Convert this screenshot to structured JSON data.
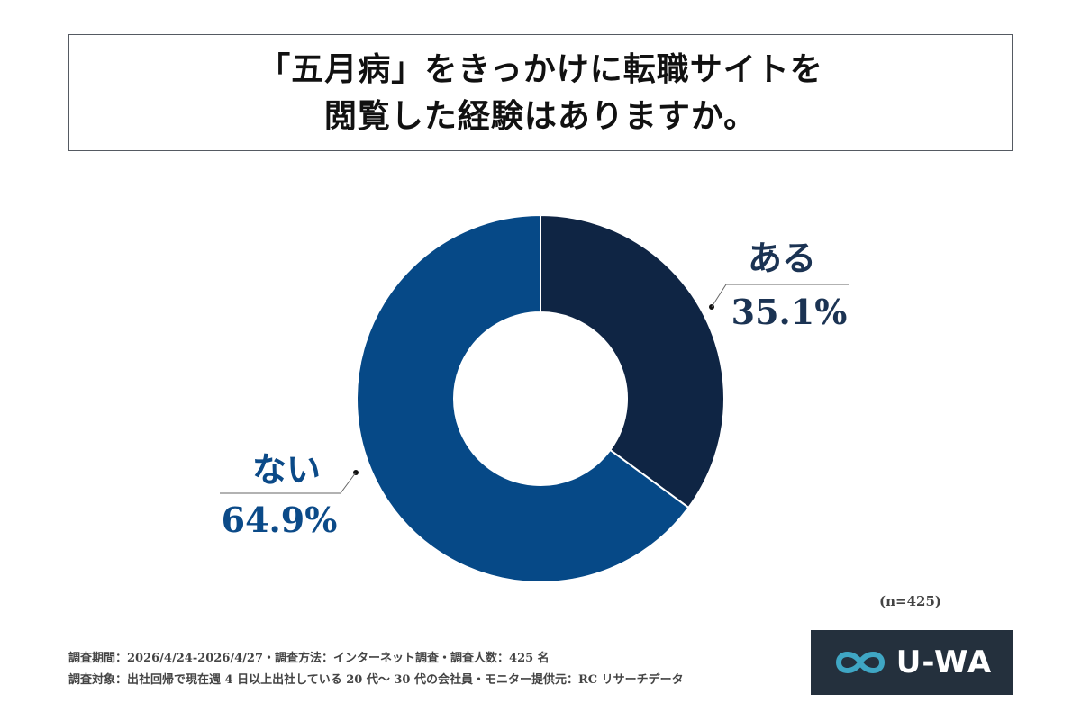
{
  "title": {
    "line1": "「五月病」をきっかけに転職サイトを",
    "line2": "閲覧した経験はありますか。"
  },
  "chart_data": {
    "type": "pie",
    "categories": [
      "ある",
      "ない"
    ],
    "values": [
      35.1,
      64.9
    ],
    "value_labels": [
      "35.1%",
      "64.9%"
    ],
    "colors": [
      "#0f2544",
      "#064987"
    ],
    "label_colors": [
      "#1b3353",
      "#0b4a88"
    ]
  },
  "sample_size": "(n=425)",
  "footnotes": {
    "line1": "調査期間：2026/4/24-2026/4/27・調査方法：インターネット調査・調査人数：425 名",
    "line2": "調査対象：出社回帰で現在週 4 日以上出社している 20 代〜 30 代の会社員・モニター提供元：RC リサーチデータ"
  },
  "logo": {
    "text": "U-WA",
    "icon": "infinity-icon",
    "background": "#24303d",
    "icon_color": "#3fa6c4"
  }
}
